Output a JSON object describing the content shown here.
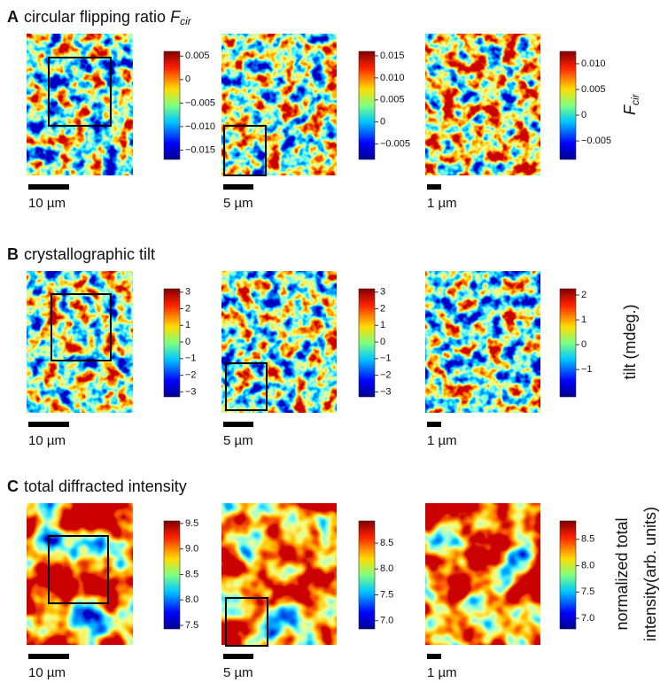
{
  "panels": [
    {
      "letter": "A",
      "title": "circular flipping ratio",
      "title_symbol": {
        "main": "F",
        "sub": "cir"
      },
      "maps": [
        {
          "scale": "10 µm",
          "colorbar": {
            "lim": [
              -0.017,
              0.006
            ],
            "ticks": [
              0.005,
              0,
              {
                "value": -0.005,
                "label": "−0.005"
              },
              {
                "value": -0.01,
                "label": "−0.010"
              },
              {
                "value": -0.015,
                "label": "−0.015"
              }
            ]
          }
        },
        {
          "scale": "5 µm",
          "colorbar": {
            "lim": [
              -0.0085,
              0.016
            ],
            "ticks": [
              0.015,
              {
                "value": 0.01,
                "label": "0.010"
              },
              0.005,
              0,
              {
                "value": -0.005,
                "label": "−0.005"
              }
            ]
          }
        },
        {
          "scale": "1 µm",
          "colorbar": {
            "lim": [
              -0.0086,
              0.0124
            ],
            "ticks": [
              {
                "value": 0.01,
                "label": "0.010"
              },
              0.005,
              0,
              {
                "value": -0.005,
                "label": "−0.005"
              }
            ]
          }
        }
      ],
      "colorbar_label": {
        "main": "F",
        "sub": "cir"
      }
    },
    {
      "letter": "B",
      "title": "crystallographic tilt",
      "maps": [
        {
          "scale": "10 µm",
          "colorbar": {
            "lim": [
              -3.3,
              3.2
            ],
            "ticks": [
              3,
              2,
              1,
              0,
              {
                "value": -1,
                "label": "−1"
              },
              {
                "value": -2,
                "label": "−2"
              },
              {
                "value": -3,
                "label": "−3"
              }
            ]
          }
        },
        {
          "scale": "5 µm",
          "colorbar": {
            "lim": [
              -3.3,
              3.2
            ],
            "ticks": [
              3,
              2,
              1,
              0,
              {
                "value": -1,
                "label": "−1"
              },
              {
                "value": -2,
                "label": "−2"
              },
              {
                "value": -3,
                "label": "−3"
              }
            ]
          }
        },
        {
          "scale": "1 µm",
          "colorbar": {
            "lim": [
              -2.1,
              2.25
            ],
            "ticks": [
              2,
              1,
              0,
              {
                "value": -1,
                "label": "−1"
              }
            ]
          }
        }
      ],
      "colorbar_label": "tilt (mdeg.)"
    },
    {
      "letter": "C",
      "title": "total diffracted intensity",
      "maps": [
        {
          "scale": "10 µm",
          "colorbar": {
            "lim": [
              7.43,
              9.55
            ],
            "ticks": [
              9.5,
              {
                "value": 9,
                "label": "9.0"
              },
              8.5,
              {
                "value": 8,
                "label": "8.0"
              },
              7.5
            ]
          }
        },
        {
          "scale": "5 µm",
          "colorbar": {
            "lim": [
              6.84,
              8.93
            ],
            "ticks": [
              8.5,
              {
                "value": 8,
                "label": "8.0"
              },
              7.5,
              {
                "value": 7,
                "label": "7.0"
              }
            ]
          }
        },
        {
          "scale": "1 µm",
          "colorbar": {
            "lim": [
              6.8,
              8.85
            ],
            "ticks": [
              8.5,
              {
                "value": 8,
                "label": "8.0"
              },
              7.5,
              {
                "value": 7,
                "label": "7.0"
              }
            ]
          }
        }
      ],
      "colorbar_label": [
        "normalized total",
        "intensity(arb. units)"
      ]
    }
  ]
}
